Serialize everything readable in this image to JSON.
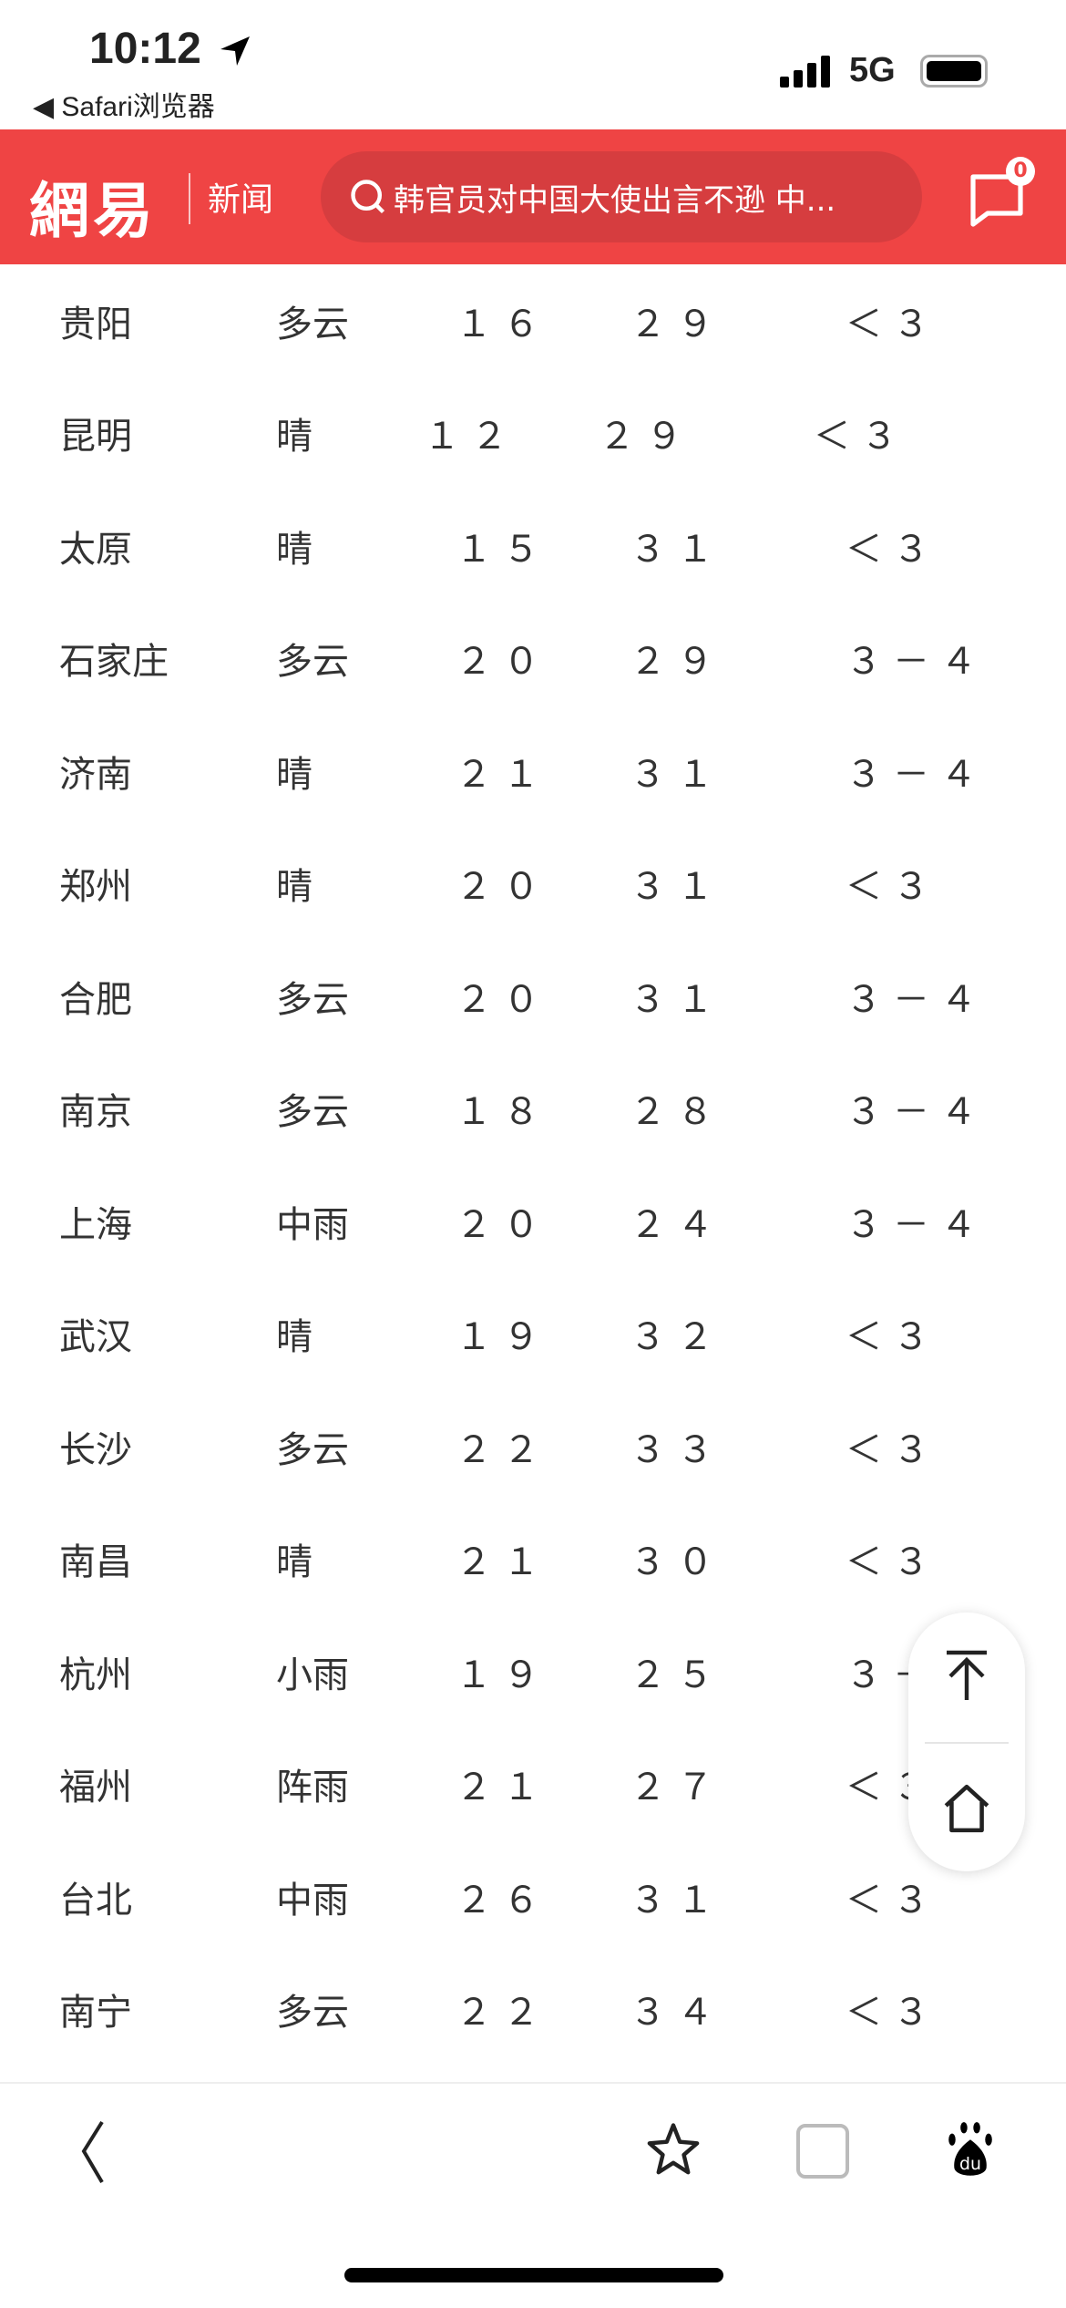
{
  "status_bar": {
    "time": "10:12",
    "back_app": "Safari浏览器",
    "network": "5G"
  },
  "header": {
    "logo": "網易",
    "channel": "新闻",
    "search_text": "韩官员对中国大使出言不逊 中...",
    "message_badge": "0",
    "brand_color": "#ef4444"
  },
  "table": {
    "rows": [
      [
        "贵阳",
        "多云",
        "１６",
        "２９",
        "＜３"
      ],
      [
        "昆明",
        "晴",
        "１２",
        "２９",
        "＜３"
      ],
      [
        "太原",
        "晴",
        "１５",
        "３１",
        "＜３"
      ],
      [
        "石家庄",
        "多云",
        "２０",
        "２９",
        "３－４"
      ],
      [
        "济南",
        "晴",
        "２１",
        "３１",
        "３－４"
      ],
      [
        "郑州",
        "晴",
        "２０",
        "３１",
        "＜３"
      ],
      [
        "合肥",
        "多云",
        "２０",
        "３１",
        "３－４"
      ],
      [
        "南京",
        "多云",
        "１８",
        "２８",
        "３－４"
      ],
      [
        "上海",
        "中雨",
        "２０",
        "２４",
        "３－４"
      ],
      [
        "武汉",
        "晴",
        "１９",
        "３２",
        "＜３"
      ],
      [
        "长沙",
        "多云",
        "２２",
        "３３",
        "＜３"
      ],
      [
        "南昌",
        "晴",
        "２１",
        "３０",
        "＜３"
      ],
      [
        "杭州",
        "小雨",
        "１９",
        "２５",
        "３－４"
      ],
      [
        "福州",
        "阵雨",
        "２１",
        "２７",
        "＜３"
      ],
      [
        "台北",
        "中雨",
        "２６",
        "３１",
        "＜３"
      ],
      [
        "南宁",
        "多云",
        "２２",
        "３４",
        "＜３"
      ]
    ]
  },
  "floating": {
    "icons": [
      "back-to-top-icon",
      "home-icon"
    ]
  },
  "bottom_bar": {
    "icons": [
      "back-icon",
      "star-icon",
      "tabs-icon",
      "baidu-icon"
    ]
  }
}
